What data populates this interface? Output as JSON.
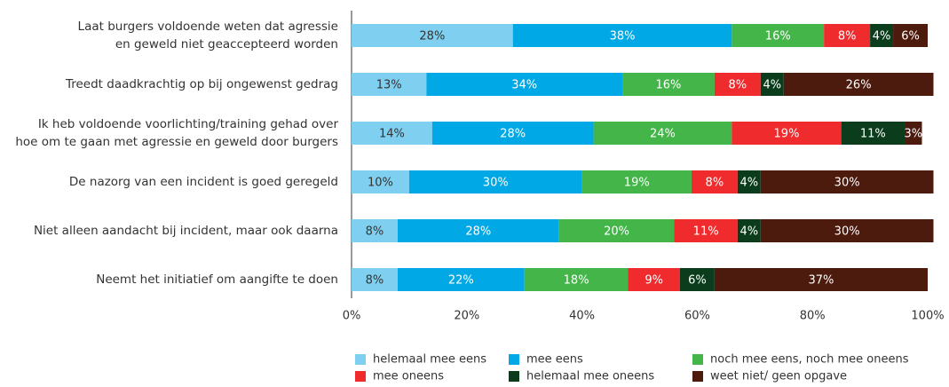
{
  "chart_data": {
    "type": "stacked-barh",
    "categories": [
      "Laat burgers voldoende weten dat agressie\nen geweld niet geaccepteerd worden",
      "Treedt daadkrachtig op bij ongewenst gedrag",
      "Ik heb voldoende voorlichting/training gehad over\nhoe om te gaan met agressie en geweld door burgers",
      "De nazorg van een incident is goed geregeld",
      "Niet alleen aandacht bij incident, maar ook daarna",
      "Neemt het initiatief om aangifte te doen"
    ],
    "series": [
      {
        "name": "helemaal mee eens",
        "color": "#7fcff0",
        "values": [
          28,
          13,
          14,
          10,
          8,
          8
        ],
        "value_labels": [
          "28%",
          "13%",
          "14%",
          "10%",
          "8%",
          "8%"
        ]
      },
      {
        "name": "mee eens",
        "color": "#00a9e6",
        "values": [
          38,
          34,
          28,
          30,
          28,
          22
        ],
        "value_labels": [
          "38%",
          "34%",
          "28%",
          "30%",
          "28%",
          "22%"
        ]
      },
      {
        "name": "noch mee eens, noch mee oneens",
        "color": "#44b649",
        "values": [
          16,
          16,
          24,
          19,
          20,
          18
        ],
        "value_labels": [
          "16%",
          "16%",
          "24%",
          "19%",
          "20%",
          "18%"
        ]
      },
      {
        "name": "mee oneens",
        "color": "#ef2b2d",
        "values": [
          8,
          8,
          19,
          8,
          11,
          9
        ],
        "value_labels": [
          "8%",
          "8%",
          "19%",
          "8%",
          "11%",
          "9%"
        ]
      },
      {
        "name": "helemaal mee oneens",
        "color": "#0b3d1c",
        "values": [
          4,
          4,
          11,
          4,
          4,
          6
        ],
        "value_labels": [
          "4%",
          "4%",
          "11%",
          "4%",
          "4%",
          "6%"
        ]
      },
      {
        "name": "weet niet/ geen opgave",
        "color": "#4d1a0e",
        "values": [
          6,
          26,
          3,
          30,
          30,
          37
        ],
        "value_labels": [
          "6%",
          "26%",
          "3%",
          "30%",
          "30%",
          "37%"
        ]
      }
    ],
    "xlim": [
      0,
      100
    ],
    "xticks": [
      {
        "value": 0,
        "label": "0%"
      },
      {
        "value": 20,
        "label": "20%"
      },
      {
        "value": 40,
        "label": "40%"
      },
      {
        "value": 60,
        "label": "60%"
      },
      {
        "value": 80,
        "label": "80%"
      },
      {
        "value": 100,
        "label": "100%"
      }
    ]
  }
}
